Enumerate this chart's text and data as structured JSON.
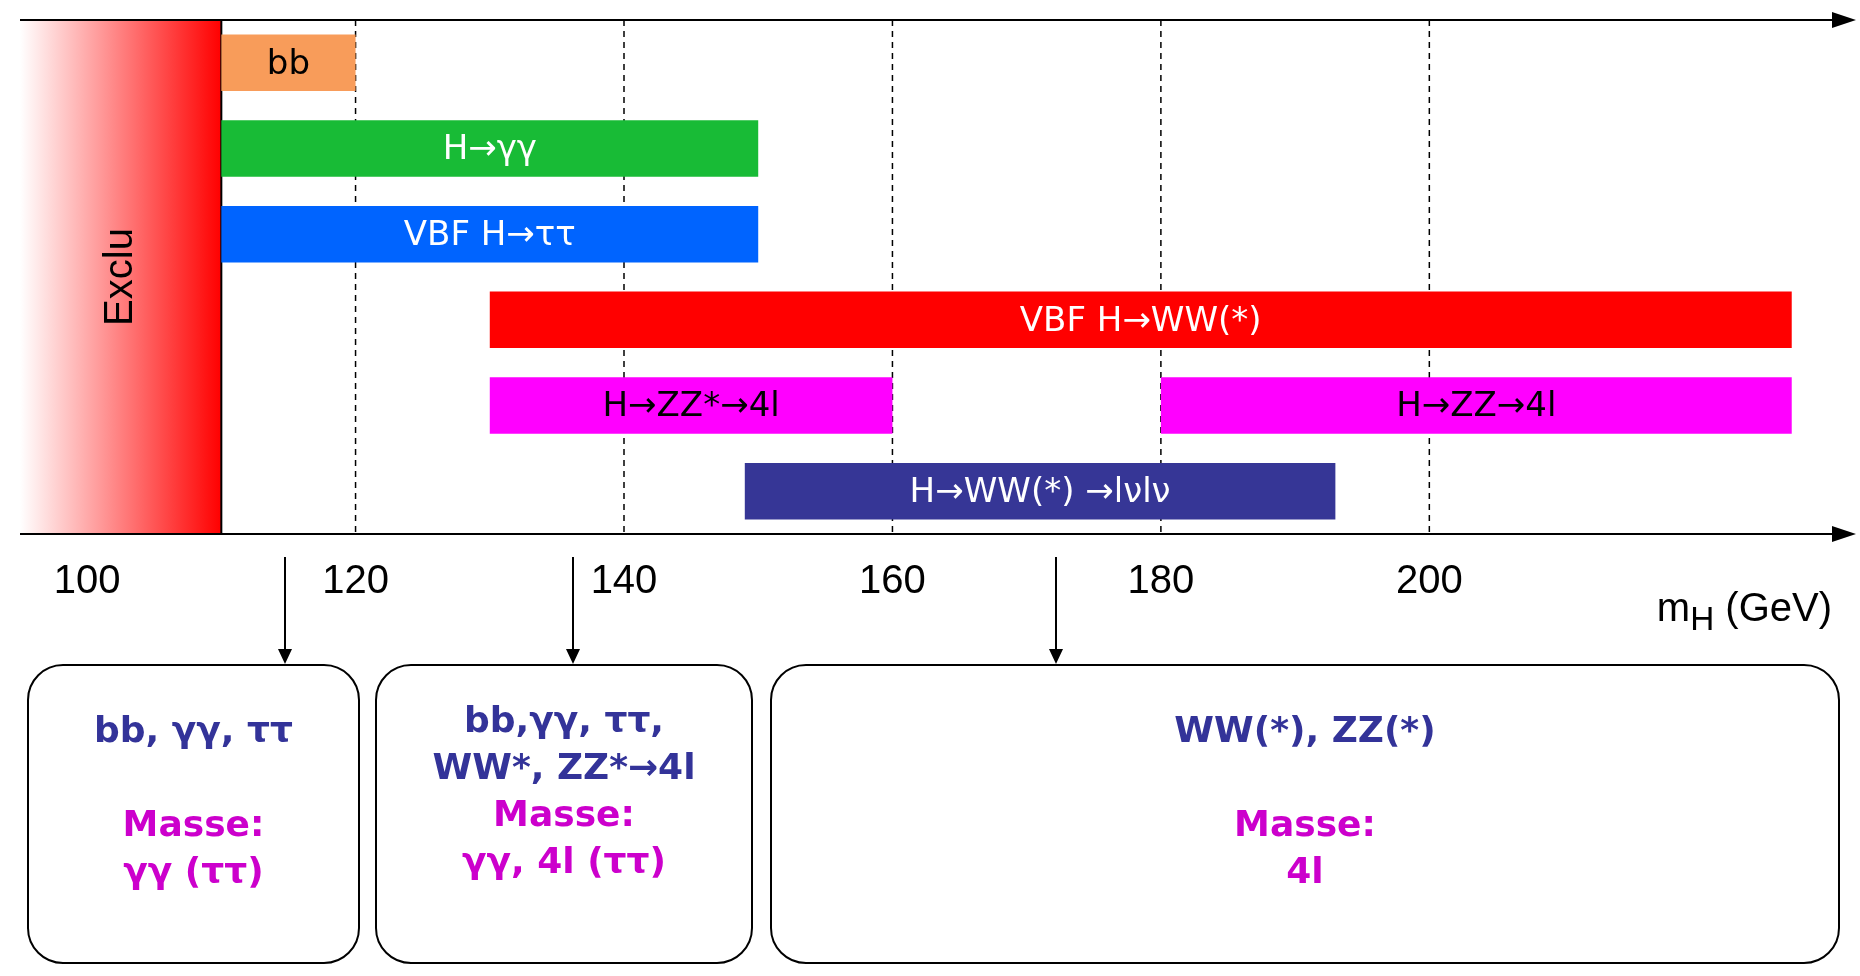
{
  "chart_data": {
    "type": "bar",
    "orientation": "horizontal",
    "xlabel": "m$_{H}$ (GeV)",
    "categories": [
      null,
      null,
      null,
      null,
      null,
      null
    ],
    "series": [
      {
        "name": "bb",
        "color": "#f89c5a",
        "base": [
          110,
          null,
          null,
          null,
          null,
          null
        ],
        "values": [
          10,
          null,
          null,
          null,
          null,
          null
        ]
      },
      {
        "name": "H→γγ",
        "color": "#18bb36",
        "base": [
          null,
          110,
          null,
          null,
          null,
          null
        ],
        "values": [
          null,
          40,
          null,
          null,
          null,
          null
        ]
      },
      {
        "name": "VBF H→ττ",
        "color": "#0064ff",
        "base": [
          null,
          null,
          110,
          null,
          null,
          null
        ],
        "values": [
          null,
          null,
          40,
          null,
          null,
          null
        ]
      },
      {
        "name": "VBF H→WW(*)",
        "color": "#ff0000",
        "base": [
          null,
          null,
          null,
          130,
          null,
          null
        ],
        "values": [
          null,
          null,
          null,
          97,
          null,
          null
        ]
      },
      {
        "name": "H→ZZ*→4l",
        "color": "#ff00ff",
        "base": [
          null,
          null,
          null,
          null,
          130,
          null
        ],
        "values": [
          null,
          null,
          null,
          null,
          30,
          null
        ]
      },
      {
        "name": "H→ZZ→4l",
        "color": "#ff00ff",
        "base": [
          null,
          null,
          null,
          null,
          180,
          null
        ],
        "values": [
          null,
          null,
          null,
          null,
          47,
          null
        ]
      },
      {
        "name": "H→WW(*) →lνlν",
        "color": "#363696",
        "base": [
          null,
          null,
          null,
          null,
          null,
          149
        ],
        "values": [
          null,
          null,
          null,
          null,
          null,
          44
        ]
      }
    ],
    "xlim": [
      95,
      230
    ],
    "xticks": [
      100,
      120,
      140,
      160,
      180,
      200
    ],
    "grid": "x",
    "legend": false,
    "bands": [
      {
        "axis": "x",
        "from": 95,
        "to": 110,
        "label": "Exclu",
        "color": "#ff0000"
      }
    ],
    "ref_lines": [
      {
        "axis": "x",
        "value": 110,
        "color": "#000000"
      }
    ],
    "annotations": [
      "bb, γγ, ττ",
      "Masse:\nγγ (ττ)",
      "bb,γγ, ττ,\nWW*, ZZ*→4l",
      "Masse:\nγγ, 4l (ττ)",
      "WW(*), ZZ(*)",
      "Masse:\n4l"
    ]
  }
}
